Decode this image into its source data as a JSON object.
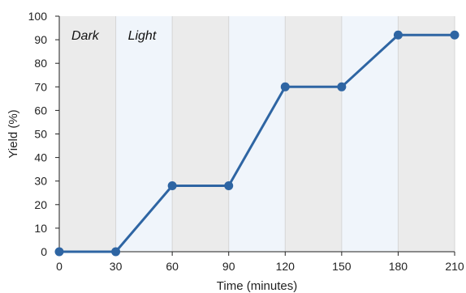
{
  "chart_data": {
    "type": "line",
    "title": "",
    "xlabel": "Time (minutes)",
    "ylabel": "Yield (%)",
    "xlim": [
      0,
      210
    ],
    "ylim": [
      0,
      100
    ],
    "xticks": [
      0,
      30,
      60,
      90,
      120,
      150,
      180,
      210
    ],
    "yticks": [
      0,
      10,
      20,
      30,
      40,
      50,
      60,
      70,
      80,
      90,
      100
    ],
    "grid": "vertical",
    "regions": [
      {
        "label": "Dark",
        "x": [
          0,
          30
        ],
        "color": "#ebebeb"
      },
      {
        "label": "Light",
        "x": [
          30,
          60
        ],
        "color": "#f0f5fb"
      },
      {
        "label": "",
        "x": [
          60,
          90
        ],
        "color": "#ebebeb"
      },
      {
        "label": "",
        "x": [
          90,
          120
        ],
        "color": "#f0f5fb"
      },
      {
        "label": "",
        "x": [
          120,
          150
        ],
        "color": "#ebebeb"
      },
      {
        "label": "",
        "x": [
          150,
          180
        ],
        "color": "#f0f5fb"
      },
      {
        "label": "",
        "x": [
          180,
          210
        ],
        "color": "#ebebeb"
      }
    ],
    "series": [
      {
        "color": "#2e65a3",
        "x": [
          0,
          30,
          60,
          90,
          120,
          150,
          180,
          210
        ],
        "y": [
          0,
          0,
          28,
          28,
          70,
          70,
          92,
          92
        ]
      }
    ]
  }
}
